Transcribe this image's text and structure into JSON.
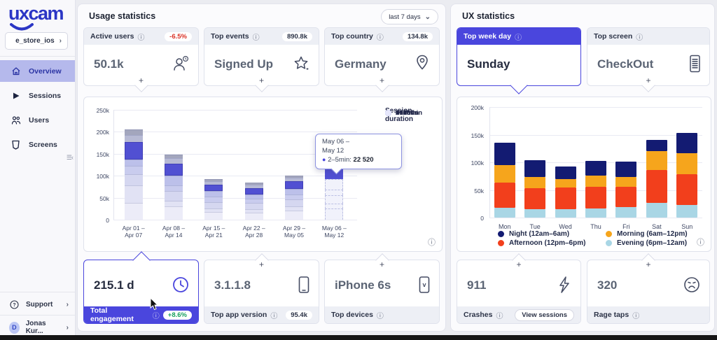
{
  "sidebar": {
    "logo": "uxcam",
    "project": "e_store_ios",
    "items": [
      {
        "label": "Overview",
        "active": true
      },
      {
        "label": "Sessions",
        "active": false
      },
      {
        "label": "Users",
        "active": false
      },
      {
        "label": "Screens",
        "active": false
      }
    ],
    "support": "Support",
    "user": {
      "initial": "D",
      "name": "Jonas Kur..."
    }
  },
  "usage": {
    "title": "Usage statistics",
    "date_range": "last 7 days",
    "cards": {
      "active_users": {
        "label": "Active users",
        "badge": "-6.5%",
        "value": "50.1k"
      },
      "top_events": {
        "label": "Top events",
        "badge": "890.8k",
        "value": "Signed Up"
      },
      "top_country": {
        "label": "Top country",
        "badge": "134.8k",
        "value": "Germany"
      },
      "total_engagement": {
        "label": "Total engagement",
        "badge": "+8.6%",
        "value": "215.1 d"
      },
      "top_app_version": {
        "label": "Top app version",
        "badge": "95.4k",
        "value": "3.1.1.8"
      },
      "top_devices": {
        "label": "Top devices",
        "value": "iPhone 6s"
      }
    }
  },
  "ux": {
    "title": "UX statistics",
    "cards": {
      "top_week_day": {
        "label": "Top week day",
        "value": "Sunday"
      },
      "top_screen": {
        "label": "Top screen",
        "value": "CheckOut"
      },
      "crashes": {
        "label": "Crashes",
        "value": "911",
        "button": "View sessions"
      },
      "rage_taps": {
        "label": "Rage taps",
        "value": "320"
      }
    }
  },
  "tooltip": {
    "date_line1": "May 06 –",
    "date_line2": "May 12",
    "label": "2–5min:",
    "value": "22 520"
  },
  "colors": {
    "accent": "#4a46dd",
    "negative_badge": "#d93025",
    "positive_badge": "#18a05e",
    "sidebar_active_bg": "#b5b9ec",
    "logo": "#2b36c5"
  },
  "chart_data": [
    {
      "type": "bar",
      "stacked": true,
      "unit": "sessions, values in thousands",
      "legend_title": [
        "Session",
        "duration"
      ],
      "categories": [
        [
          "Apr 01 –",
          "Apr 07"
        ],
        [
          "Apr 08 –",
          "Apr 14"
        ],
        [
          "Apr 15 –",
          "Apr 21"
        ],
        [
          "Apr 22 –",
          "Apr 28"
        ],
        [
          "Apr 29 –",
          "May 05"
        ],
        [
          "May 06 –",
          "May 12"
        ]
      ],
      "ylim": [
        0,
        250
      ],
      "yticks": [
        {
          "v": 0,
          "label": "0"
        },
        {
          "v": 50,
          "label": "50k"
        },
        {
          "v": 100,
          "label": "100k"
        },
        {
          "v": 150,
          "label": "150k"
        },
        {
          "v": 200,
          "label": "200k"
        },
        {
          "v": 250,
          "label": "250k"
        }
      ],
      "series": [
        {
          "name": "<5s",
          "color": "#ececf8",
          "values": [
            38,
            30,
            17,
            16,
            20,
            25
          ]
        },
        {
          "name": "5–10s",
          "color": "#e1e2f4",
          "values": [
            40,
            13,
            8,
            8,
            10,
            12
          ]
        },
        {
          "name": "10–30s",
          "color": "#d5d7f0",
          "values": [
            26,
            22,
            15,
            14,
            16,
            18
          ]
        },
        {
          "name": "30–60s",
          "color": "#c9ccee",
          "values": [
            18,
            13,
            13,
            10,
            12,
            14
          ]
        },
        {
          "name": "1–2min",
          "color": "#bcc0ea",
          "values": [
            15,
            22,
            12,
            10,
            12,
            23
          ]
        },
        {
          "name": "2–5min",
          "color": "#5150d2",
          "values": [
            40,
            27,
            15,
            14,
            18,
            22.52
          ]
        },
        {
          "name": "5–10min",
          "color": "#b7bad4",
          "values": [
            16,
            13,
            7,
            8,
            7,
            0
          ]
        },
        {
          "name": ">10min",
          "color": "#a3a6bd",
          "values": [
            12,
            8,
            5,
            5,
            5,
            0
          ]
        }
      ],
      "legend": [
        {
          "label": ">10min",
          "color": "#191b6e"
        },
        {
          "label": "5–10min",
          "color": "#2f31a5"
        },
        {
          "label": "2–5min",
          "color": "#4d4cd3"
        },
        {
          "label": "1–2min",
          "color": "#7173e0"
        },
        {
          "label": "30–60s",
          "color": "#9598ea"
        },
        {
          "label": "10–30s",
          "color": "#b6b9f2"
        },
        {
          "label": "5–10s",
          "color": "#d3d5f7"
        },
        {
          "label": "<5s",
          "color": "#e6e7fb"
        }
      ],
      "highlight": {
        "category_index": 5,
        "series_name": "2–5min",
        "value": 22.52
      }
    },
    {
      "type": "bar",
      "stacked": true,
      "unit": "sessions, values in thousands",
      "categories": [
        "Mon",
        "Tue",
        "Wed",
        "Thu",
        "Fri",
        "Sat",
        "Sun"
      ],
      "ylim": [
        0,
        200
      ],
      "yticks": [
        {
          "v": 0,
          "label": "0"
        },
        {
          "v": 50,
          "label": "50k"
        },
        {
          "v": 100,
          "label": "100k"
        },
        {
          "v": 150,
          "label": "150k"
        },
        {
          "v": 200,
          "label": "200k"
        }
      ],
      "series": [
        {
          "name": "Evening (6pm–12am)",
          "color": "#a9d6e5",
          "values": [
            18,
            15,
            15,
            17,
            19,
            27,
            23
          ]
        },
        {
          "name": "Afternoon (12pm–6pm)",
          "color": "#f23f1c",
          "values": [
            45,
            38,
            39,
            39,
            37,
            59,
            56
          ]
        },
        {
          "name": "Morning (6am–12pm)",
          "color": "#f6a51c",
          "values": [
            32,
            21,
            15,
            20,
            18,
            34,
            38
          ]
        },
        {
          "name": "Night (12am–6am)",
          "color": "#131b72",
          "values": [
            40,
            30,
            23,
            27,
            27,
            20,
            36
          ]
        }
      ],
      "legend_order": [
        "Night (12am–6am)",
        "Morning (6am–12pm)",
        "Afternoon (12pm–6pm)",
        "Evening (6pm–12am)"
      ]
    }
  ]
}
